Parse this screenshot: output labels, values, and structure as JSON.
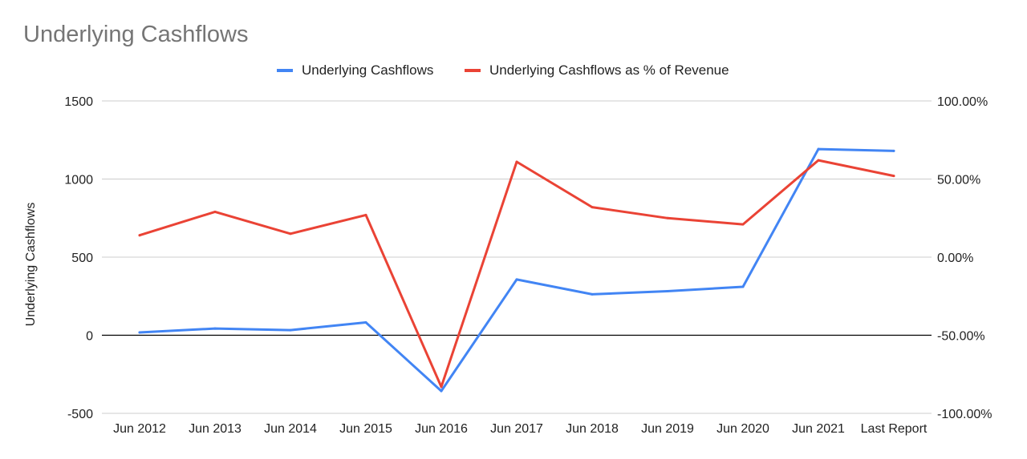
{
  "chart_data": {
    "type": "line",
    "title": "Underlying Cashflows",
    "categories": [
      "Jun 2012",
      "Jun 2013",
      "Jun 2014",
      "Jun 2015",
      "Jun 2016",
      "Jun 2017",
      "Jun 2018",
      "Jun 2019",
      "Jun 2020",
      "Jun 2021",
      "Last Report"
    ],
    "ylabel": "Underlying Cashflows",
    "ylim": [
      -500,
      1500
    ],
    "y_ticks": [
      "1500",
      "1000",
      "500",
      "0",
      "-500"
    ],
    "y_tick_values": [
      1500,
      1000,
      500,
      0,
      -500
    ],
    "y2label": "",
    "y2lim": [
      -100,
      100
    ],
    "y2_ticks": [
      "100.00%",
      "50.00%",
      "0.00%",
      "-50.00%",
      "-100.00%"
    ],
    "y2_tick_values": [
      100,
      50,
      0,
      -50,
      -100
    ],
    "grid": true,
    "legend_position": "top",
    "series": [
      {
        "name": "Underlying Cashflows",
        "axis": "left",
        "color": "#4285f4",
        "values": [
          18,
          43,
          33,
          82,
          -357,
          357,
          262,
          282,
          310,
          1192,
          1180
        ]
      },
      {
        "name": "Underlying Cashflows as % of Revenue",
        "axis": "right",
        "color": "#ea4335",
        "values": [
          14,
          29,
          15,
          27,
          -83,
          61,
          32,
          25,
          21,
          62,
          52
        ]
      }
    ]
  }
}
